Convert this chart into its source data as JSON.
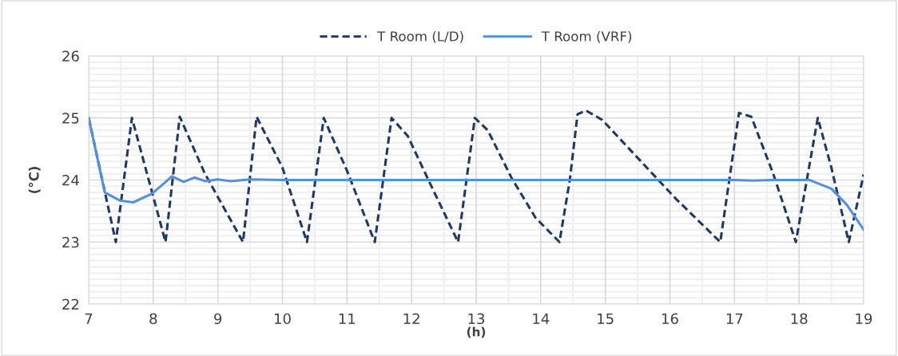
{
  "chart_data": {
    "type": "line",
    "xlabel": "(h)",
    "ylabel": "(°C)",
    "xlim": [
      7,
      19
    ],
    "xticks": [
      7,
      8,
      9,
      10,
      11,
      12,
      13,
      14,
      15,
      16,
      17,
      18,
      19
    ],
    "ylim": [
      22,
      26
    ],
    "yticks": [
      22,
      23,
      24,
      25,
      26
    ],
    "grid": true,
    "legend": "top",
    "series": [
      {
        "name": "T Room (L/D)",
        "color": "#203864",
        "line_style": "dashed",
        "x": [
          7,
          7.42,
          7.67,
          8.19,
          8.41,
          8.8,
          9.39,
          9.6,
          10.0,
          10.38,
          10.64,
          11.0,
          11.43,
          11.69,
          11.94,
          12.27,
          12.72,
          12.98,
          13.18,
          13.55,
          13.92,
          14.29,
          14.45,
          14.57,
          14.7,
          14.95,
          16.1,
          16.78,
          17.07,
          17.26,
          17.6,
          17.95,
          18.29,
          18.5,
          18.77,
          19.0
        ],
        "values": [
          25.0,
          23.0,
          25.0,
          23.0,
          25.02,
          24.1,
          23.0,
          25.02,
          24.2,
          23.0,
          25.0,
          24.15,
          23.0,
          25.0,
          24.71,
          23.98,
          23.0,
          25.0,
          24.8,
          24.03,
          23.39,
          23.0,
          24.0,
          25.06,
          25.12,
          24.97,
          23.69,
          23.0,
          25.08,
          25.02,
          24.1,
          23.0,
          25.0,
          24.2,
          23.0,
          24.09
        ]
      },
      {
        "name": "T Room (VRF)",
        "color": "#5590d9",
        "line_style": "solid",
        "x": [
          7,
          7.25,
          7.48,
          7.69,
          7.98,
          8.15,
          8.29,
          8.47,
          8.64,
          8.81,
          9.0,
          9.2,
          9.5,
          10.0,
          12.0,
          14.0,
          16.0,
          17.0,
          17.3,
          17.6,
          18.16,
          18.5,
          18.74,
          19.0
        ],
        "values": [
          25.0,
          23.8,
          23.67,
          23.64,
          23.78,
          23.93,
          24.06,
          23.97,
          24.04,
          23.98,
          24.01,
          23.98,
          24.01,
          24.0,
          24.0,
          24.0,
          24.0,
          24.0,
          23.99,
          24.0,
          24.0,
          23.86,
          23.6,
          23.2
        ]
      }
    ]
  }
}
